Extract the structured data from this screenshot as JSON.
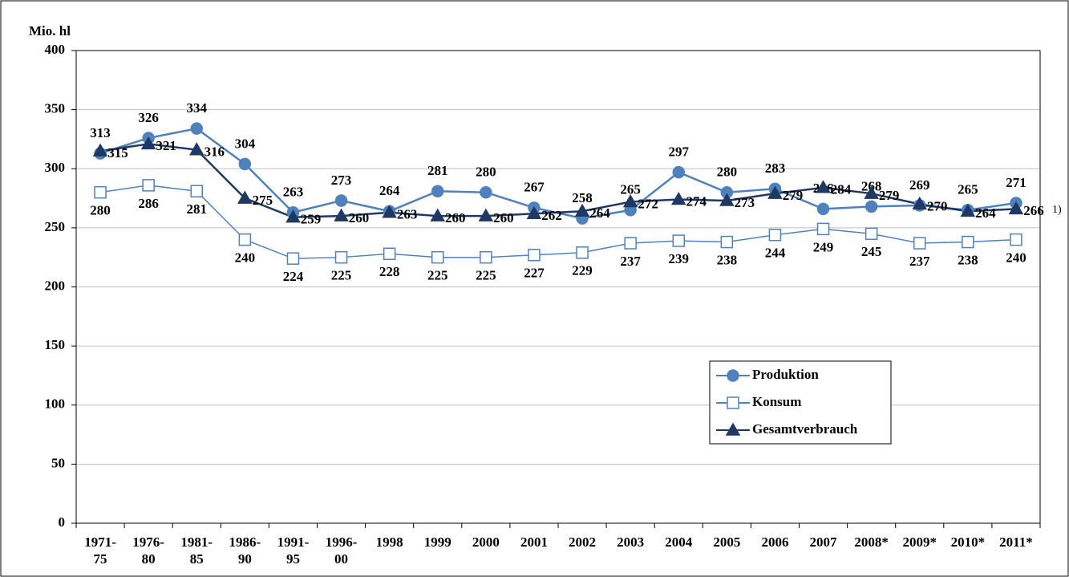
{
  "chart_data": {
    "type": "line",
    "y_label": "Mio. hl",
    "annotation": "1)",
    "categories": [
      "1971-\n75",
      "1976-\n80",
      "1981-\n85",
      "1986-\n90",
      "1991-\n95",
      "1996-\n00",
      "1998",
      "1999",
      "2000",
      "2001",
      "2002",
      "2003",
      "2004",
      "2005",
      "2006",
      "2007",
      "2008*",
      "2009*",
      "2010*",
      "2011*"
    ],
    "series": [
      {
        "name": "Produktion",
        "color": "#4f81bd",
        "marker": "circle",
        "values": [
          313,
          326,
          334,
          304,
          263,
          273,
          264,
          281,
          280,
          267,
          258,
          265,
          297,
          280,
          283,
          266,
          268,
          269,
          265,
          271
        ]
      },
      {
        "name": "Konsum",
        "color": "#4f81bd",
        "marker": "square",
        "values": [
          280,
          286,
          281,
          240,
          224,
          225,
          228,
          225,
          225,
          227,
          229,
          237,
          239,
          238,
          244,
          249,
          245,
          237,
          238,
          240
        ]
      },
      {
        "name": "Gesamtverbrauch",
        "color": "#1f3864",
        "marker": "triangle",
        "values": [
          315,
          321,
          316,
          275,
          259,
          260,
          263,
          260,
          260,
          262,
          264,
          272,
          274,
          273,
          279,
          284,
          279,
          270,
          264,
          266
        ]
      }
    ],
    "ylim": [
      0,
      400
    ],
    "yticks": [
      0,
      50,
      100,
      150,
      200,
      250,
      300,
      350,
      400
    ],
    "grid": true,
    "legend": "lower right"
  }
}
